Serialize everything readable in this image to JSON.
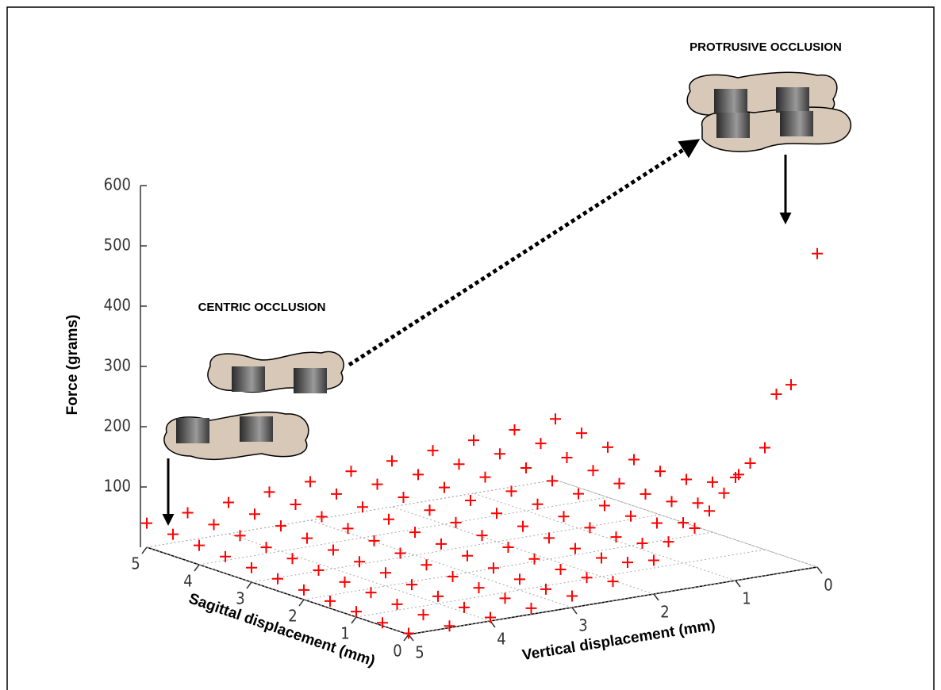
{
  "chart_data": {
    "type": "surface3d",
    "annotations": [
      "PROTRUSIVE OCCLUSION",
      "CENTRIC OCCLUSION"
    ],
    "xlabel": "Sagittal displacement (mm)",
    "ylabel": "Vertical displacement (mm)",
    "zlabel": "Force (grams)",
    "x": [
      0,
      0.5,
      1,
      1.5,
      2,
      2.5,
      3,
      3.5,
      4,
      4.5,
      5
    ],
    "y": [
      0,
      0.5,
      1,
      1.5,
      2,
      2.5,
      3,
      3.5,
      4,
      4.5,
      5
    ],
    "z": [
      [
        520,
        298,
        171,
        98,
        56,
        32,
        19,
        10,
        6,
        3,
        2
      ],
      [
        288,
        169,
        101,
        61,
        38,
        24,
        16,
        12,
        8,
        7,
        5
      ],
      [
        169,
        105,
        67,
        44,
        31,
        23,
        18,
        15,
        12,
        10,
        9
      ],
      [
        110,
        74,
        52,
        40,
        32,
        26,
        22,
        19,
        17,
        15,
        12
      ],
      [
        83,
        62,
        49,
        41,
        35,
        31,
        28,
        24,
        22,
        18,
        16
      ],
      [
        73,
        60,
        52,
        45,
        40,
        36,
        33,
        29,
        26,
        23,
        20
      ],
      [
        72,
        63,
        57,
        51,
        47,
        43,
        38,
        35,
        31,
        28,
        24
      ],
      [
        77,
        70,
        64,
        58,
        54,
        49,
        45,
        41,
        36,
        32,
        28
      ],
      [
        83,
        77,
        71,
        67,
        61,
        56,
        51,
        46,
        42,
        37,
        32
      ],
      [
        92,
        86,
        80,
        74,
        68,
        63,
        58,
        52,
        47,
        41,
        36
      ],
      [
        101,
        94,
        88,
        82,
        76,
        70,
        64,
        58,
        52,
        46,
        40
      ]
    ],
    "xlim": [
      0,
      5
    ],
    "ylim": [
      0,
      5
    ],
    "zlim": [
      0,
      600
    ],
    "xticks": [
      0,
      1,
      2,
      3,
      4,
      5
    ],
    "yticks": [
      0,
      1,
      2,
      3,
      4,
      5
    ],
    "zticks": [
      100,
      200,
      300,
      400,
      500,
      600
    ],
    "color": "#ff0000",
    "grid": true
  }
}
